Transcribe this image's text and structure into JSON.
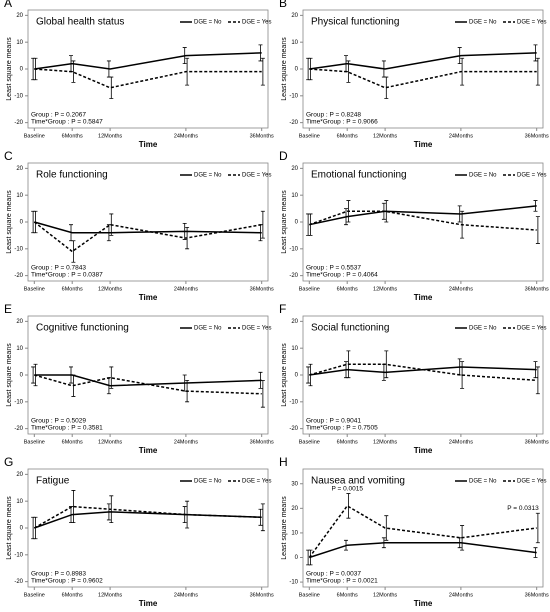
{
  "chart_data": [
    {
      "type": "line",
      "panel_label": "A",
      "title": "Global health status",
      "x_label": "Time",
      "y_label": "Least square means",
      "x": [
        0,
        6,
        12,
        24,
        36
      ],
      "xlim": [
        -1,
        37
      ],
      "xticks": [
        {
          "value": 0,
          "label": "Baseline"
        },
        {
          "value": 6,
          "label": "6Months"
        },
        {
          "value": 12,
          "label": "12Months"
        },
        {
          "value": 24,
          "label": "24Months"
        },
        {
          "value": 36,
          "label": "36Months"
        }
      ],
      "ylim": [
        -22,
        22
      ],
      "yticks": [
        -20,
        -10,
        0,
        10,
        20
      ],
      "series": [
        {
          "name": "DGE = No",
          "color": "#000000",
          "linestyle": "solid",
          "values": [
            0,
            2,
            0,
            5,
            6
          ],
          "errors": [
            4,
            3,
            3,
            3,
            3
          ]
        },
        {
          "name": "DGE = Yes",
          "color": "#000000",
          "linestyle": "dashed",
          "values": [
            0,
            -1,
            -7,
            -1,
            -1
          ],
          "errors": [
            4,
            4,
            4,
            5,
            5
          ]
        }
      ],
      "annotations": [
        "Group : P = 0.2067",
        "Time*Group : P = 0.5847"
      ]
    },
    {
      "type": "line",
      "panel_label": "B",
      "title": "Physical functioning",
      "x_label": "Time",
      "y_label": "Least square means",
      "x": [
        0,
        6,
        12,
        24,
        36
      ],
      "xlim": [
        -1,
        37
      ],
      "xticks": [
        {
          "value": 0,
          "label": "Baseline"
        },
        {
          "value": 6,
          "label": "6Months"
        },
        {
          "value": 12,
          "label": "12Months"
        },
        {
          "value": 24,
          "label": "24Months"
        },
        {
          "value": 36,
          "label": "36Months"
        }
      ],
      "ylim": [
        -22,
        22
      ],
      "yticks": [
        -20,
        -10,
        0,
        10,
        20
      ],
      "series": [
        {
          "name": "DGE = No",
          "color": "#000000",
          "linestyle": "solid",
          "values": [
            0,
            2,
            0,
            5,
            6
          ],
          "errors": [
            4,
            3,
            3,
            3,
            3
          ]
        },
        {
          "name": "DGE = Yes",
          "color": "#000000",
          "linestyle": "dashed",
          "values": [
            0,
            -1,
            -7,
            -1,
            -1
          ],
          "errors": [
            4,
            4,
            4,
            5,
            5
          ]
        }
      ],
      "annotations": [
        "Group : P = 0.8248",
        "Time*Group : P = 0.9066"
      ]
    },
    {
      "type": "line",
      "panel_label": "C",
      "title": "Role functioning",
      "x_label": "Time",
      "y_label": "Least square means",
      "x": [
        0,
        6,
        12,
        24,
        36
      ],
      "xlim": [
        -1,
        37
      ],
      "xticks": [
        {
          "value": 0,
          "label": "Baseline"
        },
        {
          "value": 6,
          "label": "6Months"
        },
        {
          "value": 12,
          "label": "12Months"
        },
        {
          "value": 24,
          "label": "24Months"
        },
        {
          "value": 36,
          "label": "36Months"
        }
      ],
      "ylim": [
        -22,
        22
      ],
      "yticks": [
        -20,
        -10,
        0,
        10,
        20
      ],
      "series": [
        {
          "name": "DGE = No",
          "color": "#000000",
          "linestyle": "solid",
          "values": [
            0,
            -4,
            -4,
            -3.5,
            -4
          ],
          "errors": [
            4,
            3,
            3,
            3,
            3
          ]
        },
        {
          "name": "DGE = Yes",
          "color": "#000000",
          "linestyle": "dashed",
          "values": [
            0,
            -11,
            -1,
            -6,
            -1
          ],
          "errors": [
            4,
            4,
            4,
            4,
            5
          ]
        }
      ],
      "annotations": [
        "Group : P = 0.7843",
        "Time*Group : P = 0.0387"
      ]
    },
    {
      "type": "line",
      "panel_label": "D",
      "title": "Emotional functioning",
      "x_label": "Time",
      "y_label": "Least square means",
      "x": [
        0,
        6,
        12,
        24,
        36
      ],
      "xlim": [
        -1,
        37
      ],
      "xticks": [
        {
          "value": 0,
          "label": "Baseline"
        },
        {
          "value": 6,
          "label": "6Months"
        },
        {
          "value": 12,
          "label": "12Months"
        },
        {
          "value": 24,
          "label": "24Months"
        },
        {
          "value": 36,
          "label": "36Months"
        }
      ],
      "ylim": [
        -22,
        22
      ],
      "yticks": [
        -20,
        -10,
        0,
        10,
        20
      ],
      "series": [
        {
          "name": "DGE = No",
          "color": "#000000",
          "linestyle": "solid",
          "values": [
            -1,
            2,
            4,
            3,
            6
          ],
          "errors": [
            4,
            3,
            3,
            3,
            2
          ]
        },
        {
          "name": "DGE = Yes",
          "color": "#000000",
          "linestyle": "dashed",
          "values": [
            -1,
            4,
            4,
            -1,
            -3
          ],
          "errors": [
            4,
            4,
            4,
            5,
            5
          ]
        }
      ],
      "annotations": [
        "Group : P = 0.5537",
        "Time*Group : P = 0.4064"
      ]
    },
    {
      "type": "line",
      "panel_label": "E",
      "title": "Cognitive functioning",
      "x_label": "Time",
      "y_label": "Least square means",
      "x": [
        0,
        6,
        12,
        24,
        36
      ],
      "xlim": [
        -1,
        37
      ],
      "xticks": [
        {
          "value": 0,
          "label": "Baseline"
        },
        {
          "value": 6,
          "label": "6Months"
        },
        {
          "value": 12,
          "label": "12Months"
        },
        {
          "value": 24,
          "label": "24Months"
        },
        {
          "value": 36,
          "label": "36Months"
        }
      ],
      "ylim": [
        -22,
        22
      ],
      "yticks": [
        -20,
        -10,
        0,
        10,
        20
      ],
      "series": [
        {
          "name": "DGE = No",
          "color": "#000000",
          "linestyle": "solid",
          "values": [
            0,
            0,
            -4,
            -3,
            -2
          ],
          "errors": [
            3,
            3,
            3,
            3,
            3
          ]
        },
        {
          "name": "DGE = Yes",
          "color": "#000000",
          "linestyle": "dashed",
          "values": [
            0,
            -4,
            -1,
            -6,
            -7
          ],
          "errors": [
            4,
            4,
            4,
            4,
            5
          ]
        }
      ],
      "annotations": [
        "Group : P = 0.5029",
        "Time*Group : P = 0.3581"
      ]
    },
    {
      "type": "line",
      "panel_label": "F",
      "title": "Social functioning",
      "x_label": "Time",
      "y_label": "Least square means",
      "x": [
        0,
        6,
        12,
        24,
        36
      ],
      "xlim": [
        -1,
        37
      ],
      "xticks": [
        {
          "value": 0,
          "label": "Baseline"
        },
        {
          "value": 6,
          "label": "6Months"
        },
        {
          "value": 12,
          "label": "12Months"
        },
        {
          "value": 24,
          "label": "24Months"
        },
        {
          "value": 36,
          "label": "36Months"
        }
      ],
      "ylim": [
        -22,
        22
      ],
      "yticks": [
        -20,
        -10,
        0,
        10,
        20
      ],
      "series": [
        {
          "name": "DGE = No",
          "color": "#000000",
          "linestyle": "solid",
          "values": [
            0,
            2,
            1,
            3,
            2
          ],
          "errors": [
            3,
            3,
            3,
            3,
            3
          ]
        },
        {
          "name": "DGE = Yes",
          "color": "#000000",
          "linestyle": "dashed",
          "values": [
            0,
            4,
            4,
            0,
            -2
          ],
          "errors": [
            4,
            5,
            5,
            5,
            5
          ]
        }
      ],
      "annotations": [
        "Group : P = 0.9041",
        "Time*Group : P = 0.7505"
      ]
    },
    {
      "type": "line",
      "panel_label": "G",
      "title": "Fatigue",
      "x_label": "Time",
      "y_label": "Least square means",
      "x": [
        0,
        6,
        12,
        24,
        36
      ],
      "xlim": [
        -1,
        37
      ],
      "xticks": [
        {
          "value": 0,
          "label": "Baseline"
        },
        {
          "value": 6,
          "label": "6Months"
        },
        {
          "value": 12,
          "label": "12Months"
        },
        {
          "value": 24,
          "label": "24Months"
        },
        {
          "value": 36,
          "label": "36Months"
        }
      ],
      "ylim": [
        -22,
        22
      ],
      "yticks": [
        -20,
        -10,
        0,
        10,
        20
      ],
      "series": [
        {
          "name": "DGE = No",
          "color": "#000000",
          "linestyle": "solid",
          "values": [
            0,
            5,
            6,
            5,
            4
          ],
          "errors": [
            4,
            3,
            3,
            3,
            3
          ]
        },
        {
          "name": "DGE = Yes",
          "color": "#000000",
          "linestyle": "dashed",
          "values": [
            0,
            8,
            7,
            5,
            4
          ],
          "errors": [
            4,
            6,
            5,
            5,
            5
          ]
        }
      ],
      "annotations": [
        "Group : P = 0.8983",
        "Time*Group : P = 0.9602"
      ]
    },
    {
      "type": "line",
      "panel_label": "H",
      "title": "Nausea and vomiting",
      "x_label": "Time",
      "y_label": "Least square means",
      "x": [
        0,
        6,
        12,
        24,
        36
      ],
      "xlim": [
        -1,
        37
      ],
      "xticks": [
        {
          "value": 0,
          "label": "Baseline"
        },
        {
          "value": 6,
          "label": "6Months"
        },
        {
          "value": 12,
          "label": "12Months"
        },
        {
          "value": 24,
          "label": "24Months"
        },
        {
          "value": 36,
          "label": "36Months"
        }
      ],
      "ylim": [
        -12,
        36
      ],
      "yticks": [
        -10,
        0,
        10,
        20,
        30
      ],
      "series": [
        {
          "name": "DGE = No",
          "color": "#000000",
          "linestyle": "solid",
          "values": [
            0,
            5,
            6,
            6,
            2
          ],
          "errors": [
            3,
            2,
            2,
            2,
            2
          ]
        },
        {
          "name": "DGE = Yes",
          "color": "#000000",
          "linestyle": "dashed",
          "values": [
            0,
            21,
            12,
            8,
            12
          ],
          "errors": [
            3,
            5,
            5,
            5,
            6
          ]
        }
      ],
      "point_annotations": [
        {
          "text": "P = 0.0015",
          "x": 6
        },
        {
          "text": "P = 0.0313",
          "x": 36
        }
      ],
      "annotations": [
        "Group : P = 0.0037",
        "Time*Group : P = 0.0021"
      ]
    }
  ]
}
